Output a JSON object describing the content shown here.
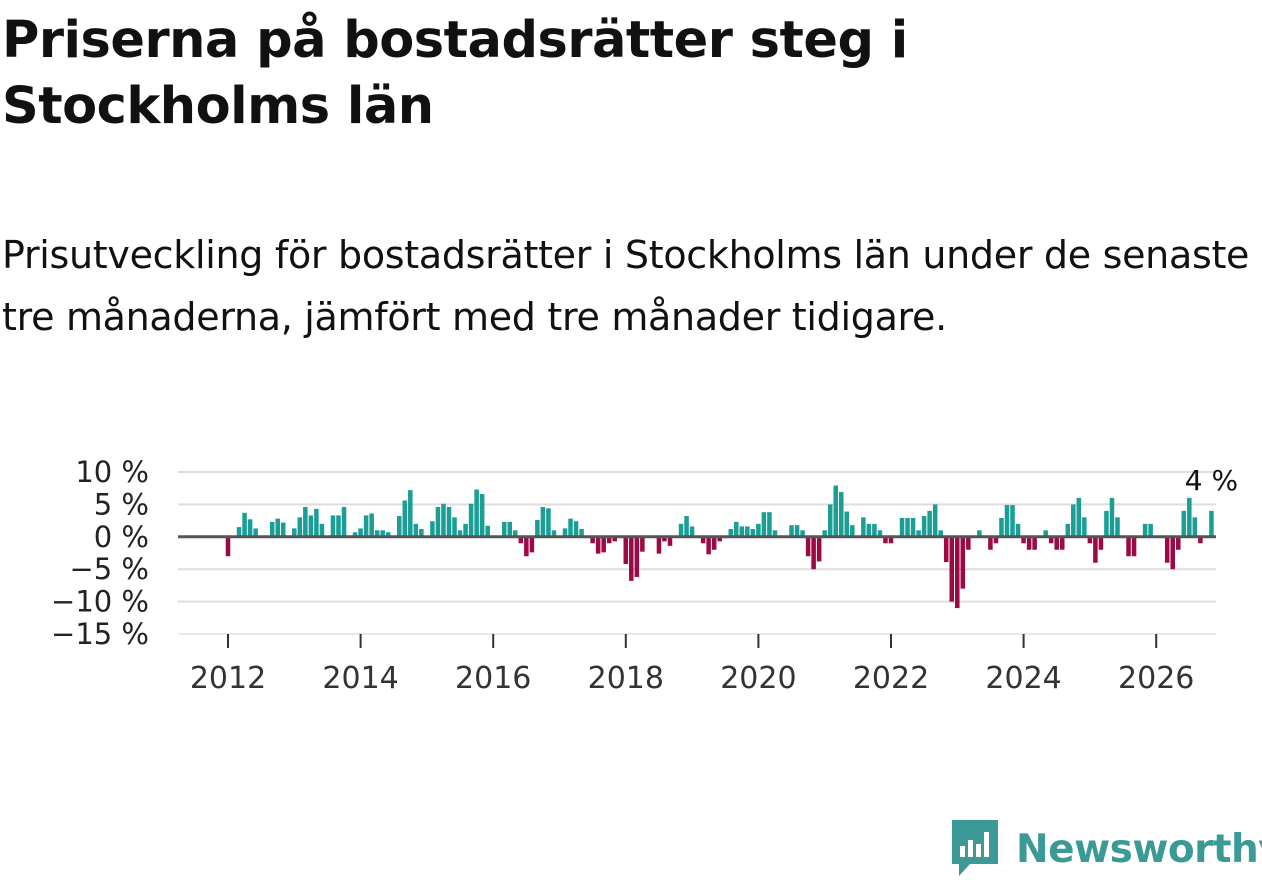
{
  "header": {
    "title": "Priserna på bostadsrätter steg i Stockholms län",
    "subtitle": "Prisutveckling för bostadsrätter i Stockholms län under de senaste tre månaderna, jämfört med tre månader tidigare."
  },
  "chart_data": {
    "type": "bar",
    "title": "Priserna på bostadsrätter steg i Stockholms län",
    "subtitle": "Prisutveckling för bostadsrätter i Stockholms län under de senaste tre månaderna, jämfört med tre månader tidigare.",
    "xlabel": "",
    "ylabel": "",
    "x_start": 2012.0,
    "x_step": 0.08333,
    "ylim": [
      -15,
      10
    ],
    "y_ticks": [
      10,
      5,
      0,
      -5,
      -10,
      -15
    ],
    "y_tick_labels": [
      "10 %",
      "5 %",
      "0 %",
      "−5 %",
      "−10 %",
      "−15 %"
    ],
    "x_ticks": [
      2012,
      2014,
      2016,
      2018,
      2020,
      2022,
      2024,
      2026
    ],
    "x_tick_labels": [
      "2012",
      "2014",
      "2016",
      "2018",
      "2020",
      "2022",
      "2024",
      "2026"
    ],
    "last_value_label": "4 %",
    "positive_color": "#1a9e96",
    "negative_color": "#9c0a46",
    "grid": true,
    "values": [
      -3,
      0,
      1.5,
      3.7,
      2.7,
      1.3,
      0,
      0,
      2.3,
      2.8,
      2.2,
      0,
      1.3,
      3,
      4.6,
      3.3,
      4.3,
      2,
      0,
      3.3,
      3.3,
      4.6,
      0,
      0.7,
      1.3,
      3.3,
      3.6,
      1,
      1,
      0.7,
      0,
      3.2,
      5.6,
      7.2,
      2,
      1.2,
      0,
      2.4,
      4.6,
      5.1,
      4.6,
      3,
      1,
      2,
      5.1,
      7.3,
      6.6,
      1.7,
      0,
      0,
      2.3,
      2.3,
      1,
      -1,
      -3,
      -2.4,
      2.6,
      4.6,
      4.4,
      1,
      0,
      1.3,
      2.8,
      2.4,
      1.2,
      0,
      -1,
      -2.6,
      -2.4,
      -1,
      -0.7,
      0,
      -4.2,
      -6.8,
      -6.2,
      -2.3,
      0,
      0,
      -2.6,
      -0.7,
      -1.4,
      0,
      2,
      3.2,
      1.6,
      0,
      -1,
      -2.7,
      -2,
      -0.7,
      0,
      1.2,
      2.3,
      1.6,
      1.6,
      1.2,
      2,
      3.8,
      3.8,
      1,
      0,
      0,
      1.8,
      1.8,
      1,
      -3,
      -5,
      -3.8,
      1,
      5,
      7.9,
      6.9,
      3.9,
      1.8,
      0,
      3,
      2,
      2,
      1,
      -1,
      -1,
      0,
      2.9,
      2.9,
      2.9,
      1,
      3.2,
      4,
      5,
      1,
      -3.9,
      -10,
      -11,
      -8,
      -2,
      0,
      1,
      0,
      -2,
      -1,
      2.9,
      4.9,
      4.9,
      2,
      -1,
      -2,
      -2,
      0,
      1,
      -1,
      -2,
      -2,
      2,
      5,
      6,
      3,
      -1,
      -4,
      -2,
      4,
      6,
      3,
      0,
      -3,
      -3,
      0,
      2,
      2,
      0,
      0,
      -4,
      -5,
      -2,
      4,
      6,
      3,
      -1,
      0,
      4
    ]
  },
  "brand": {
    "name": "Newsworthy",
    "color": "#3b9a96"
  }
}
